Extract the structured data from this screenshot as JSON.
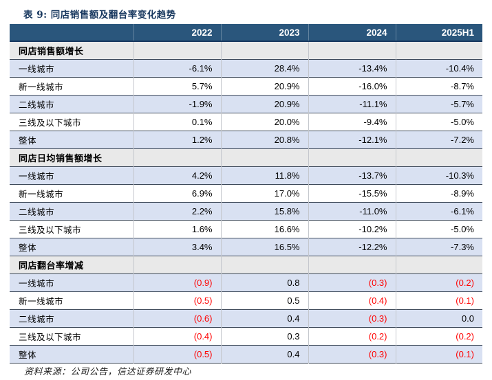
{
  "page_title": "表 9: 同店销售额及翻台率变化趋势",
  "table": {
    "columns": [
      "",
      "2022",
      "2023",
      "2024",
      "2025H1"
    ],
    "sections": [
      {
        "header": "同店销售额增长",
        "rows": [
          {
            "label": "一线城市",
            "values": [
              "-6.1%",
              "28.4%",
              "-13.4%",
              "-10.4%"
            ]
          },
          {
            "label": "新一线城市",
            "values": [
              "5.7%",
              "20.9%",
              "-16.0%",
              "-8.7%"
            ]
          },
          {
            "label": "二线城市",
            "values": [
              "-1.9%",
              "20.9%",
              "-11.1%",
              "-5.7%"
            ]
          },
          {
            "label": "三线及以下城市",
            "values": [
              "0.1%",
              "20.0%",
              "-9.4%",
              "-5.0%"
            ]
          },
          {
            "label": "整体",
            "values": [
              "1.2%",
              "20.8%",
              "-12.1%",
              "-7.2%"
            ]
          }
        ]
      },
      {
        "header": "同店日均销售额增长",
        "rows": [
          {
            "label": "一线城市",
            "values": [
              "4.2%",
              "11.8%",
              "-13.7%",
              "-10.3%"
            ]
          },
          {
            "label": "新一线城市",
            "values": [
              "6.9%",
              "17.0%",
              "-15.5%",
              "-8.9%"
            ]
          },
          {
            "label": "二线城市",
            "values": [
              "2.2%",
              "15.8%",
              "-11.0%",
              "-6.1%"
            ]
          },
          {
            "label": "三线及以下城市",
            "values": [
              "1.6%",
              "16.6%",
              "-10.2%",
              "-5.0%"
            ]
          },
          {
            "label": "整体",
            "values": [
              "3.4%",
              "16.5%",
              "-12.2%",
              "-7.3%"
            ]
          }
        ]
      },
      {
        "header": "同店翻台率增减",
        "rows": [
          {
            "label": "一线城市",
            "values": [
              "(0.9)",
              "0.8",
              "(0.3)",
              "(0.2)"
            ]
          },
          {
            "label": "新一线城市",
            "values": [
              "(0.5)",
              "0.5",
              "(0.4)",
              "(0.1)"
            ]
          },
          {
            "label": "二线城市",
            "values": [
              "(0.6)",
              "0.4",
              "(0.3)",
              "0.0"
            ]
          },
          {
            "label": "三线及以下城市",
            "values": [
              "(0.4)",
              "0.3",
              "(0.2)",
              "(0.2)"
            ]
          },
          {
            "label": "整体",
            "values": [
              "(0.5)",
              "0.4",
              "(0.3)",
              "(0.1)"
            ]
          }
        ]
      }
    ]
  },
  "source_note": "资料来源：公司公告，信达证券研发中心",
  "colors": {
    "header_bg": "#2A567C",
    "row_alt": "#D9E1F2",
    "section_bg": "#E9E9E9",
    "negative": "#FF0000",
    "title": "#17375E"
  }
}
